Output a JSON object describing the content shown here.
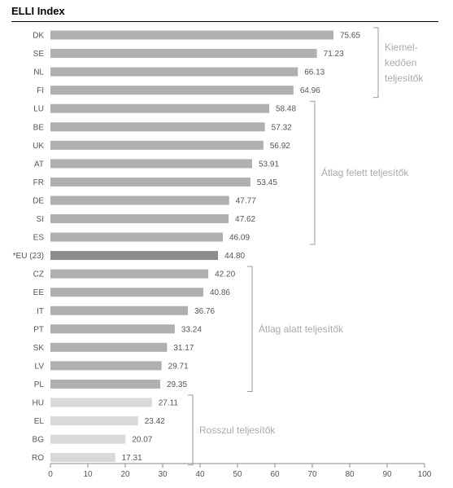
{
  "chart_data": {
    "type": "bar",
    "orientation": "horizontal",
    "title": "ELLI Index",
    "categories": [
      "DK",
      "SE",
      "NL",
      "FI",
      "LU",
      "BE",
      "UK",
      "AT",
      "FR",
      "DE",
      "SI",
      "ES",
      "*EU (23)",
      "CZ",
      "EE",
      "IT",
      "PT",
      "SK",
      "LV",
      "PL",
      "HU",
      "EL",
      "BG",
      "RO"
    ],
    "values": [
      75.65,
      71.23,
      66.13,
      64.96,
      58.48,
      57.32,
      56.92,
      53.91,
      53.45,
      47.77,
      47.62,
      46.09,
      44.8,
      42.2,
      40.86,
      36.76,
      33.24,
      31.17,
      29.71,
      29.35,
      27.11,
      23.42,
      20.07,
      17.31
    ],
    "value_labels": [
      "75.65",
      "71.23",
      "66.13",
      "64.96",
      "58.48",
      "57.32",
      "56.92",
      "53.91",
      "53.45",
      "47.77",
      "47.62",
      "46.09",
      "44.80",
      "42.20",
      "40.86",
      "36.76",
      "33.24",
      "31.17",
      "29.71",
      "29.35",
      "27.11",
      "23.42",
      "20.07",
      "17.31"
    ],
    "xlim": [
      0,
      100
    ],
    "xticks": [
      "0",
      "10",
      "20",
      "30",
      "40",
      "50",
      "60",
      "70",
      "80",
      "90",
      "100"
    ],
    "grid": false,
    "groups": [
      {
        "label_lines": [
          "Kiemel-",
          "kedően",
          "teljesítők"
        ],
        "start": 0,
        "end": 3,
        "color": "#b0b0b0"
      },
      {
        "label_lines": [
          "Átlag felett teljesítők"
        ],
        "start": 4,
        "end": 11,
        "color": "#b0b0b0"
      },
      {
        "label_lines": [
          "Átlag alatt teljesítők"
        ],
        "start": 13,
        "end": 19,
        "color": "#b0b0b0"
      },
      {
        "label_lines": [
          "Rosszul teljesítők"
        ],
        "start": 20,
        "end": 23,
        "color": "#d9d9d9"
      }
    ],
    "average_index": 12,
    "average_color": "#8c8c8c"
  }
}
